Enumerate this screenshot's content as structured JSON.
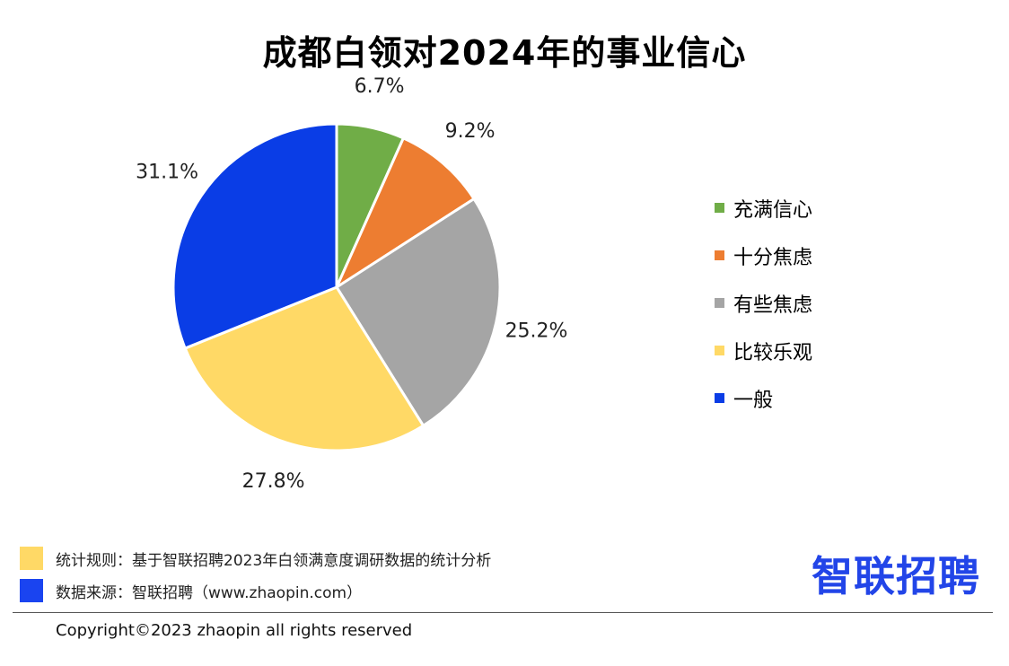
{
  "title": "成都白领对2024年的事业信心",
  "chart_data": {
    "type": "pie",
    "title": "成都白领对2024年的事业信心",
    "categories": [
      "充满信心",
      "十分焦虑",
      "有些焦虑",
      "比较乐观",
      "一般"
    ],
    "values": [
      6.7,
      9.2,
      25.2,
      27.8,
      31.1
    ],
    "value_labels": [
      "6.7%",
      "9.2%",
      "25.2%",
      "27.8%",
      "31.1%"
    ],
    "colors": [
      "#70ad47",
      "#ed7d31",
      "#a5a5a5",
      "#ffd966",
      "#0a3de6"
    ],
    "legend": "right"
  },
  "notes": [
    {
      "text": "统计规则：基于智联招聘2023年白领满意度调研数据的统计分析",
      "color": "#ffd966"
    },
    {
      "text": "数据来源：智联招聘（www.zhaopin.com）",
      "color": "#1a44f0"
    }
  ],
  "logo": "智联招聘",
  "copyright": "Copyright©2023 zhaopin all rights reserved"
}
